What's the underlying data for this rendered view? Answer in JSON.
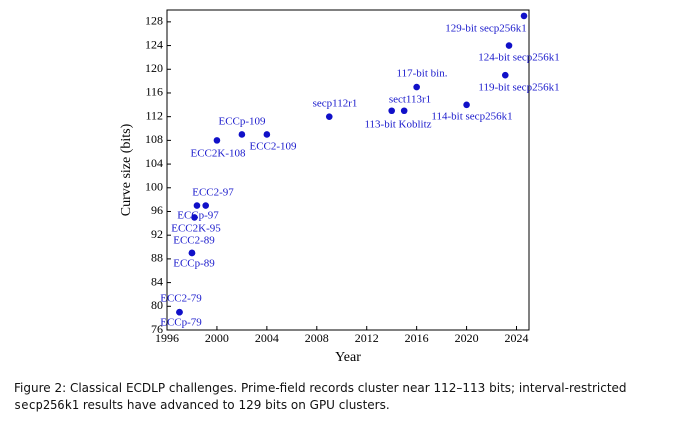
{
  "chart_data": {
    "type": "scatter",
    "x_label": "Year",
    "y_label": "Curve size (bits)",
    "color": "#1010c8",
    "xlim": [
      1996,
      2025
    ],
    "xticks": [
      1996,
      2000,
      2004,
      2008,
      2012,
      2016,
      2020,
      2024
    ],
    "ylim": [
      76,
      130
    ],
    "yticks": [
      76,
      80,
      84,
      88,
      92,
      96,
      100,
      104,
      108,
      112,
      116,
      120,
      124,
      128
    ],
    "points": [
      {
        "label": "ECC2-79",
        "x": 1997,
        "y": 79
      },
      {
        "label": "ECCp-79",
        "x": 1997,
        "y": 79
      },
      {
        "label": "ECC2-89",
        "x": 1998,
        "y": 89
      },
      {
        "label": "ECCp-89",
        "x": 1998,
        "y": 89
      },
      {
        "label": "ECC2-97",
        "x": 1999.1,
        "y": 97
      },
      {
        "label": "ECCp-97",
        "x": 1998.4,
        "y": 97
      },
      {
        "label": "ECC2K-95",
        "x": 1998.2,
        "y": 95
      },
      {
        "label": "ECC2K-108",
        "x": 2000,
        "y": 108
      },
      {
        "label": "ECCp-109",
        "x": 2002,
        "y": 109
      },
      {
        "label": "ECC2-109",
        "x": 2004,
        "y": 109
      },
      {
        "label": "secp112r1",
        "x": 2009,
        "y": 112
      },
      {
        "label": "113-bit Koblitz",
        "x": 2014,
        "y": 113
      },
      {
        "label": "sect113r1",
        "x": 2015,
        "y": 113
      },
      {
        "label": "117-bit bin.",
        "x": 2016,
        "y": 117
      },
      {
        "label": "114-bit secp256k1",
        "x": 2020,
        "y": 114
      },
      {
        "label": "119-bit secp256k1",
        "x": 2023.1,
        "y": 119
      },
      {
        "label": "124-bit secp256k1",
        "x": 2023.4,
        "y": 124
      },
      {
        "label": "129-bit secp256k1",
        "x": 2024.6,
        "y": 129
      }
    ]
  },
  "caption": {
    "prefix": "Figure 2: Classical ECDLP challenges. Prime-field records cluster near 112–113 bits; interval-restricted",
    "code": "secp256k1",
    "suffix": "results have advanced to 129 bits on GPU clusters."
  }
}
